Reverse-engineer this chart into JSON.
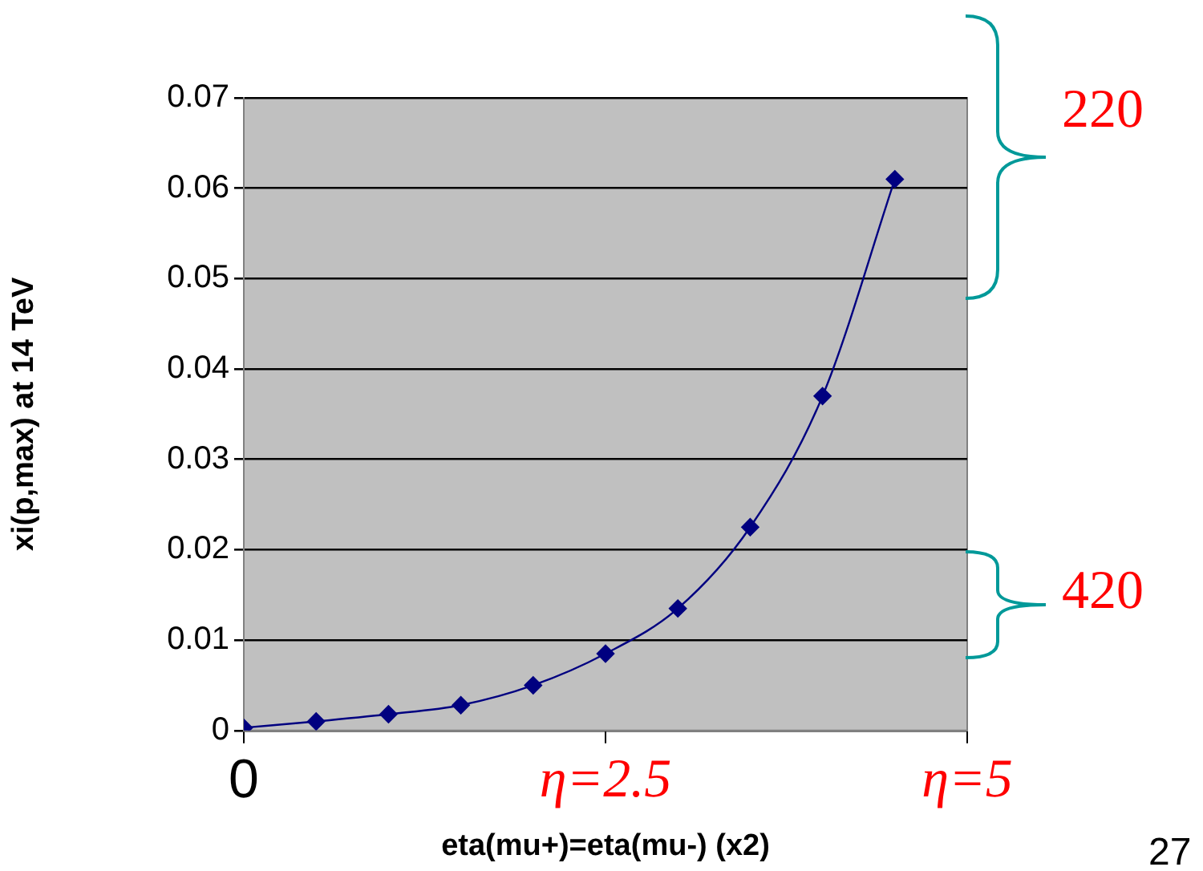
{
  "chart_data": {
    "type": "line",
    "xlabel": "eta(mu+)=eta(mu-) (x2)",
    "ylabel": "xi(p,max) at 14 TeV",
    "x": [
      0,
      0.5,
      1,
      1.5,
      2,
      2.5,
      3,
      3.5,
      4,
      4.5
    ],
    "series": [
      {
        "color": "#000080",
        "values": [
          0.0003,
          0.001,
          0.0018,
          0.0028,
          0.005,
          0.0085,
          0.0135,
          0.0225,
          0.037,
          0.061
        ]
      }
    ],
    "xlim": [
      0,
      5
    ],
    "xticks": [
      0,
      {
        "value": 2.5,
        "label": "η=2.5"
      },
      {
        "value": 5,
        "label": "η=5"
      }
    ],
    "ylim": [
      0,
      0.07
    ],
    "yticks": [
      0,
      0.01,
      0.02,
      0.03,
      0.04,
      0.05,
      0.06,
      0.07
    ],
    "grid": "y",
    "legend": false,
    "marker": "diamond",
    "line_style": "solid",
    "annotations": [
      "220",
      "420",
      "27"
    ]
  }
}
